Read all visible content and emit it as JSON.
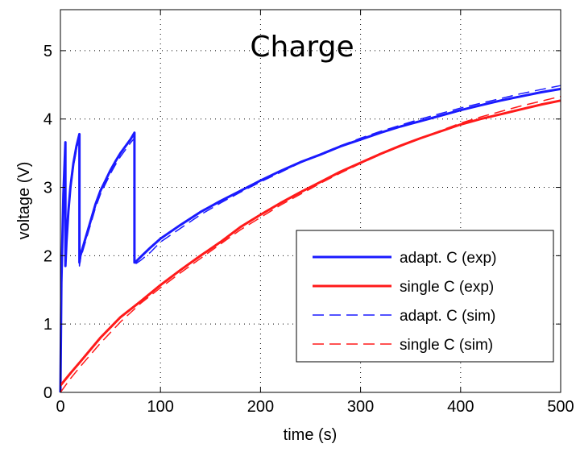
{
  "chart_data": {
    "type": "line",
    "title": "Charge",
    "xlabel": "time (s)",
    "ylabel": "voltage (V)",
    "xlim": [
      0,
      500
    ],
    "ylim": [
      0,
      5.6
    ],
    "xticks": [
      0,
      100,
      200,
      300,
      400,
      500
    ],
    "yticks": [
      0,
      1,
      2,
      3,
      4,
      5
    ],
    "xtick_labels": [
      "0",
      "100",
      "200",
      "300",
      "400",
      "500"
    ],
    "ytick_labels": [
      "0",
      "1",
      "2",
      "3",
      "4",
      "5"
    ],
    "grid": "dotted",
    "legend_position": "bottom-right",
    "series": [
      {
        "name": "adapt. C (exp)",
        "color": "#1a1aff",
        "style": "solid",
        "x": [
          0,
          1,
          3,
          5,
          5,
          6,
          8,
          10,
          13,
          16,
          19,
          19,
          20,
          25,
          30,
          35,
          40,
          45,
          50,
          55,
          60,
          65,
          70,
          74,
          74,
          75,
          76,
          80,
          90,
          100,
          120,
          140,
          160,
          180,
          200,
          220,
          240,
          260,
          280,
          300,
          320,
          340,
          360,
          380,
          400,
          420,
          440,
          460,
          480,
          500
        ],
        "y": [
          0.0,
          1.6,
          2.9,
          3.66,
          1.85,
          2.2,
          2.65,
          3.0,
          3.35,
          3.6,
          3.78,
          1.9,
          2.0,
          2.25,
          2.5,
          2.75,
          2.95,
          3.1,
          3.25,
          3.38,
          3.5,
          3.6,
          3.7,
          3.8,
          1.9,
          1.9,
          1.92,
          1.98,
          2.12,
          2.25,
          2.45,
          2.64,
          2.8,
          2.95,
          3.1,
          3.24,
          3.37,
          3.48,
          3.6,
          3.7,
          3.8,
          3.89,
          3.97,
          4.05,
          4.13,
          4.2,
          4.27,
          4.33,
          4.39,
          4.44
        ]
      },
      {
        "name": "single C (exp)",
        "color": "#ff1a1a",
        "style": "solid",
        "x": [
          0,
          10,
          20,
          40,
          60,
          80,
          100,
          120,
          140,
          160,
          180,
          200,
          220,
          240,
          260,
          280,
          300,
          320,
          340,
          360,
          380,
          400,
          420,
          440,
          460,
          480,
          500
        ],
        "y": [
          0.1,
          0.28,
          0.45,
          0.8,
          1.1,
          1.33,
          1.57,
          1.79,
          2.0,
          2.2,
          2.42,
          2.6,
          2.77,
          2.93,
          3.08,
          3.23,
          3.36,
          3.49,
          3.61,
          3.72,
          3.82,
          3.92,
          4.0,
          4.07,
          4.14,
          4.21,
          4.27
        ]
      },
      {
        "name": "adapt. C (sim)",
        "color": "#1a1aff",
        "style": "dashed",
        "x": [
          0,
          1,
          3,
          5,
          5,
          6,
          8,
          10,
          13,
          16,
          19,
          19,
          20,
          25,
          30,
          35,
          40,
          45,
          50,
          55,
          60,
          65,
          70,
          74,
          74,
          75,
          76,
          80,
          90,
          100,
          120,
          140,
          160,
          180,
          200,
          220,
          240,
          260,
          280,
          300,
          320,
          340,
          360,
          380,
          400,
          420,
          440,
          460,
          480,
          500
        ],
        "y": [
          0.0,
          1.5,
          2.8,
          3.6,
          1.82,
          2.15,
          2.6,
          2.95,
          3.3,
          3.55,
          3.74,
          1.85,
          1.95,
          2.2,
          2.45,
          2.7,
          2.9,
          3.05,
          3.2,
          3.33,
          3.45,
          3.55,
          3.65,
          3.72,
          1.88,
          1.88,
          1.89,
          1.93,
          2.05,
          2.2,
          2.4,
          2.6,
          2.77,
          2.93,
          3.08,
          3.22,
          3.36,
          3.49,
          3.61,
          3.72,
          3.82,
          3.91,
          4.0,
          4.08,
          4.16,
          4.23,
          4.3,
          4.37,
          4.43,
          4.49
        ]
      },
      {
        "name": "single C (sim)",
        "color": "#ff1a1a",
        "style": "dashed",
        "x": [
          0,
          10,
          20,
          40,
          60,
          80,
          100,
          120,
          140,
          160,
          180,
          200,
          220,
          240,
          260,
          280,
          300,
          320,
          340,
          360,
          380,
          400,
          420,
          440,
          460,
          480,
          500
        ],
        "y": [
          0.0,
          0.2,
          0.38,
          0.72,
          1.03,
          1.3,
          1.53,
          1.75,
          1.96,
          2.17,
          2.38,
          2.56,
          2.74,
          2.9,
          3.06,
          3.21,
          3.35,
          3.48,
          3.61,
          3.72,
          3.83,
          3.94,
          4.03,
          4.11,
          4.19,
          4.26,
          4.33
        ]
      }
    ]
  }
}
